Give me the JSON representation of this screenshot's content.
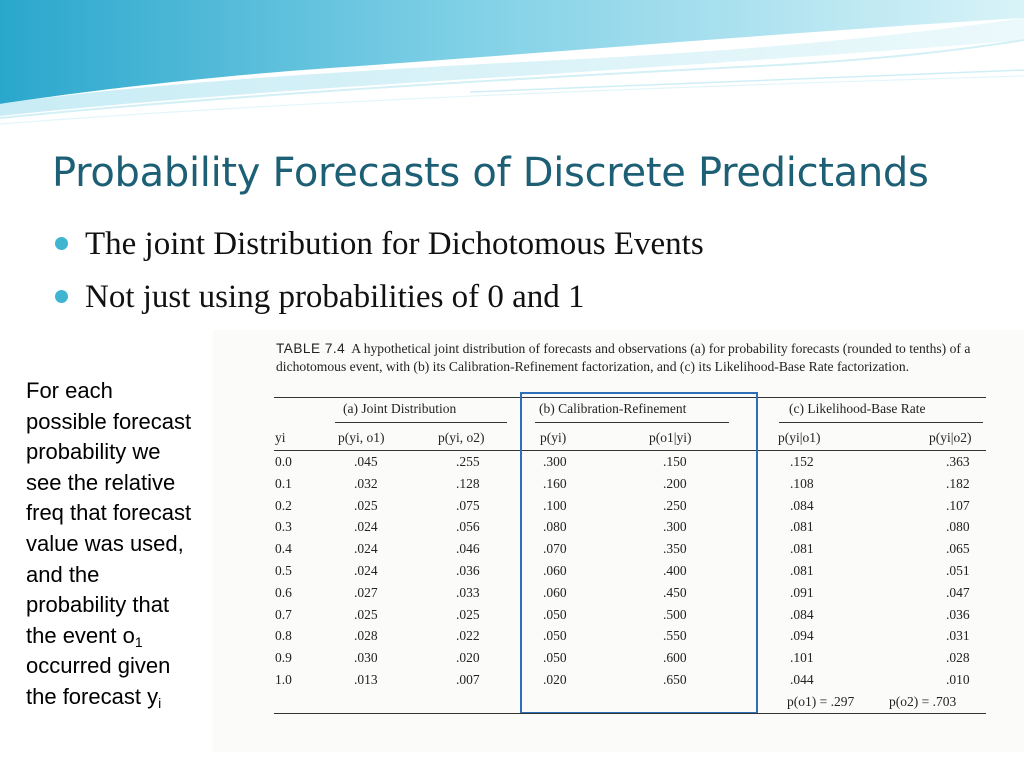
{
  "slide": {
    "title": "Probability Forecasts of Discrete Predictands",
    "bullets": [
      "The joint Distribution for Dichotomous Events",
      "Not just using probabilities of 0 and 1"
    ],
    "note_lines": [
      "For each",
      "possible forecast",
      "probability we",
      "see the relative",
      "freq that forecast",
      "value was used,",
      "and the",
      "probability that"
    ],
    "note_o1_prefix": "the event o",
    "note_o1_sub": "1",
    "note_occurred": "occurred given",
    "note_forecast_prefix": "the forecast y",
    "note_forecast_sub": "i"
  },
  "table": {
    "number": "TABLE 7.4",
    "caption": "A hypothetical joint distribution of forecasts and observations (a) for probability forecasts (rounded to tenths) of a dichotomous event, with (b) its Calibration-Refinement factorization, and (c) its Likelihood-Base Rate factorization.",
    "groups": [
      "(a) Joint Distribution",
      "(b) Calibration-Refinement",
      "(c) Likelihood-Base Rate"
    ],
    "columns": [
      "yi",
      "p(yi, o1)",
      "p(yi, o2)",
      "p(yi)",
      "p(o1|yi)",
      "p(yi|o1)",
      "p(yi|o2)"
    ],
    "rows": [
      [
        "0.0",
        ".045",
        ".255",
        ".300",
        ".150",
        ".152",
        ".363"
      ],
      [
        "0.1",
        ".032",
        ".128",
        ".160",
        ".200",
        ".108",
        ".182"
      ],
      [
        "0.2",
        ".025",
        ".075",
        ".100",
        ".250",
        ".084",
        ".107"
      ],
      [
        "0.3",
        ".024",
        ".056",
        ".080",
        ".300",
        ".081",
        ".080"
      ],
      [
        "0.4",
        ".024",
        ".046",
        ".070",
        ".350",
        ".081",
        ".065"
      ],
      [
        "0.5",
        ".024",
        ".036",
        ".060",
        ".400",
        ".081",
        ".051"
      ],
      [
        "0.6",
        ".027",
        ".033",
        ".060",
        ".450",
        ".091",
        ".047"
      ],
      [
        "0.7",
        ".025",
        ".025",
        ".050",
        ".500",
        ".084",
        ".036"
      ],
      [
        "0.8",
        ".028",
        ".022",
        ".050",
        ".550",
        ".094",
        ".031"
      ],
      [
        "0.9",
        ".030",
        ".020",
        ".050",
        ".600",
        ".101",
        ".028"
      ],
      [
        "1.0",
        ".013",
        ".007",
        ".020",
        ".650",
        ".044",
        ".010"
      ]
    ],
    "base_rate_1": "p(o1) = .297",
    "base_rate_2": "p(o2) = .703"
  },
  "colors": {
    "title": "#1d5f75",
    "bullet_dot": "#3fb5d1",
    "highlight_box": "#2f6fb8",
    "wave_light": "#bfe9f3",
    "wave_mid": "#7fd0e6",
    "wave_dark": "#2aa7cc"
  }
}
